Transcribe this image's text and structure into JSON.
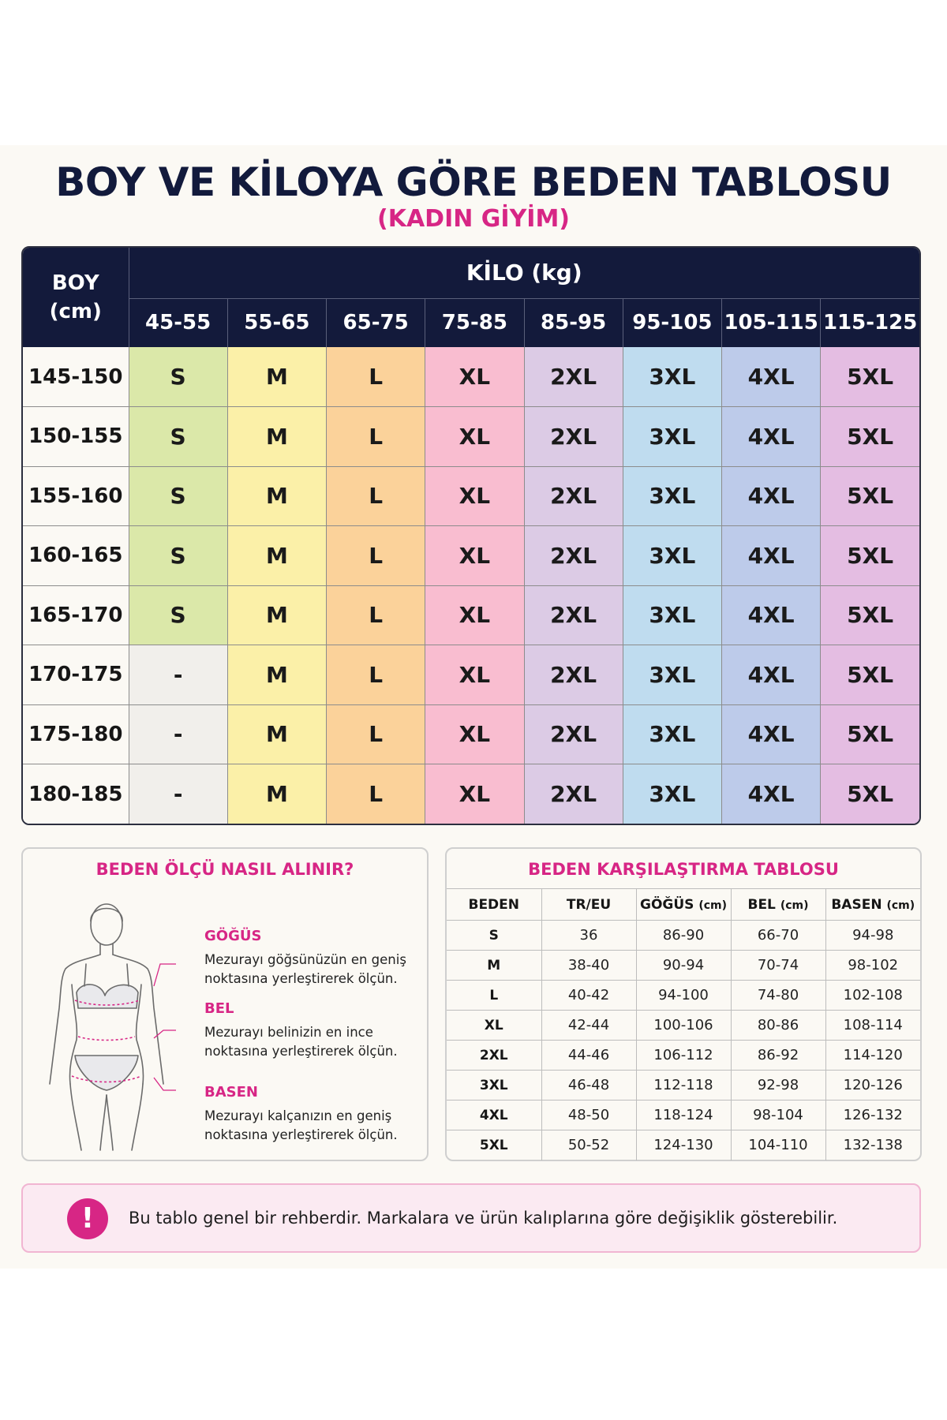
{
  "header": {
    "title": "BOY VE KİLOYA GÖRE BEDEN TABLOSU",
    "subtitle": "(KADIN GİYİM)"
  },
  "size_chart": {
    "height_label": [
      "BOY",
      "(cm)"
    ],
    "weight_label": "KİLO (kg)",
    "weight_ranges": [
      "45-55",
      "55-65",
      "65-75",
      "75-85",
      "85-95",
      "95-105",
      "105-115",
      "115-125"
    ],
    "column_colors": [
      "#dbe8a9",
      "#fbf0a8",
      "#fbd29a",
      "#f9bdd0",
      "#dccbe5",
      "#bfdcef",
      "#bdcbea",
      "#e4bde2"
    ],
    "empty_color": "#f1efeb",
    "rows": [
      {
        "height": "145-150",
        "sizes": [
          "S",
          "M",
          "L",
          "XL",
          "2XL",
          "3XL",
          "4XL",
          "5XL"
        ]
      },
      {
        "height": "150-155",
        "sizes": [
          "S",
          "M",
          "L",
          "XL",
          "2XL",
          "3XL",
          "4XL",
          "5XL"
        ]
      },
      {
        "height": "155-160",
        "sizes": [
          "S",
          "M",
          "L",
          "XL",
          "2XL",
          "3XL",
          "4XL",
          "5XL"
        ]
      },
      {
        "height": "160-165",
        "sizes": [
          "S",
          "M",
          "L",
          "XL",
          "2XL",
          "3XL",
          "4XL",
          "5XL"
        ]
      },
      {
        "height": "165-170",
        "sizes": [
          "S",
          "M",
          "L",
          "XL",
          "2XL",
          "3XL",
          "4XL",
          "5XL"
        ]
      },
      {
        "height": "170-175",
        "sizes": [
          "-",
          "M",
          "L",
          "XL",
          "2XL",
          "3XL",
          "4XL",
          "5XL"
        ]
      },
      {
        "height": "175-180",
        "sizes": [
          "-",
          "M",
          "L",
          "XL",
          "2XL",
          "3XL",
          "4XL",
          "5XL"
        ]
      },
      {
        "height": "180-185",
        "sizes": [
          "-",
          "M",
          "L",
          "XL",
          "2XL",
          "3XL",
          "4XL",
          "5XL"
        ]
      }
    ]
  },
  "measure": {
    "title": "BEDEN ÖLÇÜ NASIL ALINIR?",
    "figure_icon": "female-body-outline-icon",
    "items": [
      {
        "label": "GÖĞÜS",
        "lines": [
          "Mezurayı göğsünüzün en geniş",
          "noktasına yerleştirerek ölçün."
        ]
      },
      {
        "label": "BEL",
        "lines": [
          "Mezurayı belinizin en ince",
          "noktasına yerleştirerek ölçün."
        ]
      },
      {
        "label": "BASEN",
        "lines": [
          "Mezurayı kalçanızın en geniş",
          "noktasına yerleştirerek ölçün."
        ]
      }
    ]
  },
  "comparison": {
    "title": "BEDEN KARŞILAŞTIRMA TABLOSU",
    "headers": [
      {
        "main": "BEDEN",
        "unit": ""
      },
      {
        "main": "TR/EU",
        "unit": ""
      },
      {
        "main": "GÖĞÜS",
        "unit": "(cm)"
      },
      {
        "main": "BEL",
        "unit": "(cm)"
      },
      {
        "main": "BASEN",
        "unit": "(cm)"
      }
    ],
    "rows": [
      [
        "S",
        "36",
        "86-90",
        "66-70",
        "94-98"
      ],
      [
        "M",
        "38-40",
        "90-94",
        "70-74",
        "98-102"
      ],
      [
        "L",
        "40-42",
        "94-100",
        "74-80",
        "102-108"
      ],
      [
        "XL",
        "42-44",
        "100-106",
        "80-86",
        "108-114"
      ],
      [
        "2XL",
        "44-46",
        "106-112",
        "86-92",
        "114-120"
      ],
      [
        "3XL",
        "46-48",
        "112-118",
        "92-98",
        "120-126"
      ],
      [
        "4XL",
        "48-50",
        "118-124",
        "98-104",
        "126-132"
      ],
      [
        "5XL",
        "50-52",
        "124-130",
        "104-110",
        "132-138"
      ]
    ]
  },
  "note": {
    "icon": "exclamation-icon",
    "icon_glyph": "!",
    "text": "Bu tablo genel bir rehberdir. Markalara ve ürün kalıplarına göre değişiklik gösterebilir."
  },
  "colors": {
    "navy": "#131a3b",
    "accent_pink": "#d72685"
  }
}
